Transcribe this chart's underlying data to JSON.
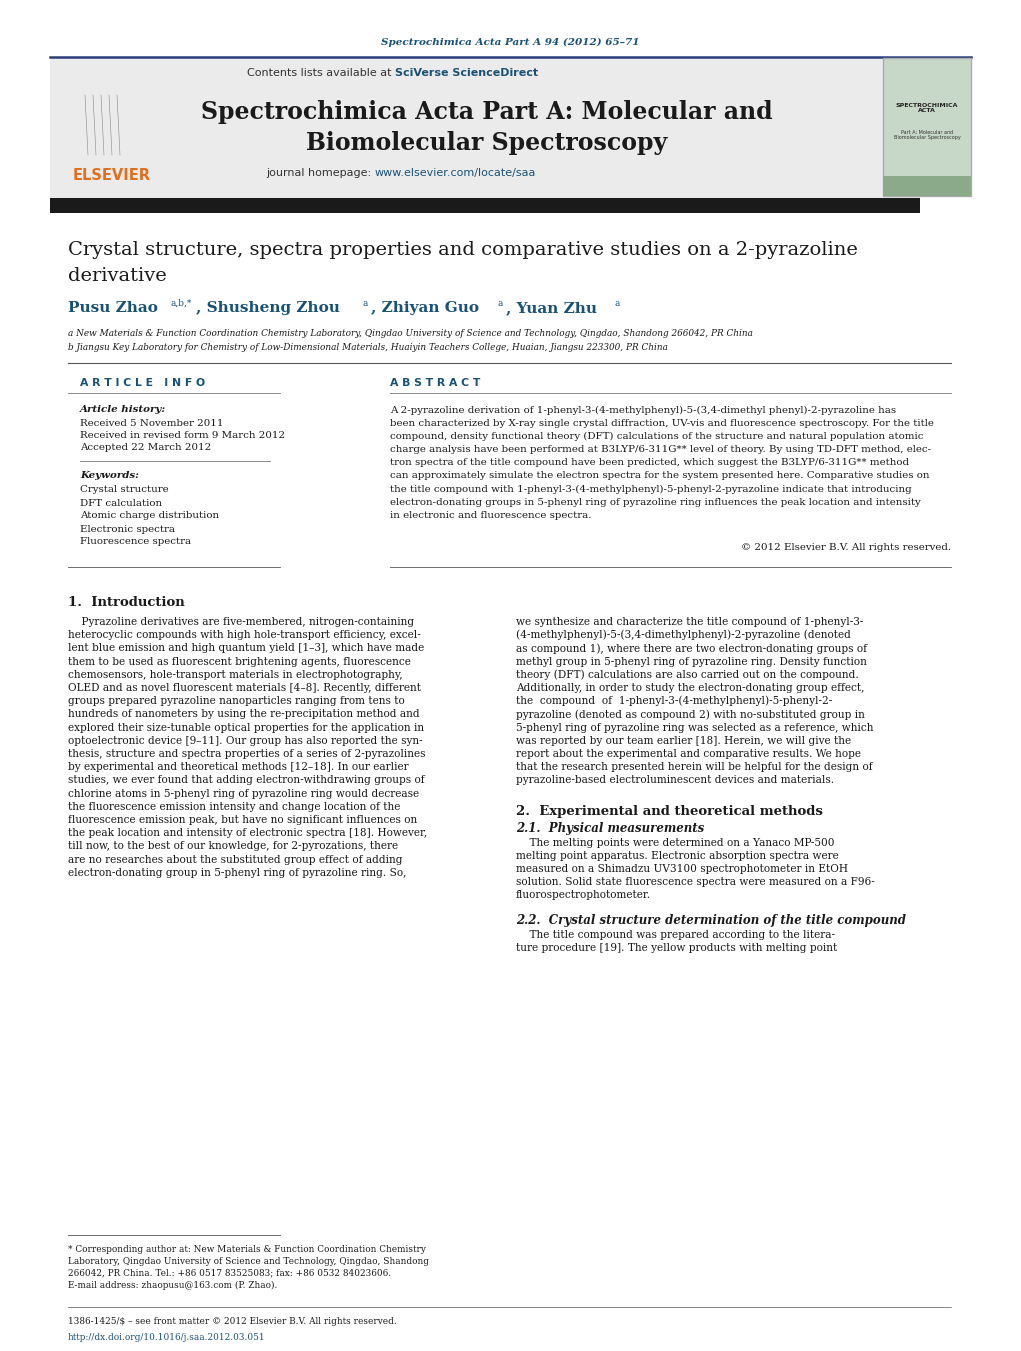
{
  "page_bg": "#ffffff",
  "top_journal_ref": "Spectrochimica Acta Part A 94 (2012) 65–71",
  "top_journal_ref_color": "#1a5276",
  "header_bg": "#ebebeb",
  "header_border_color": "#2c3e7a",
  "journal_name_line1": "Spectrochimica Acta Part A: Molecular and",
  "journal_name_line2": "Biomolecular Spectroscopy",
  "journal_homepage_plain": "journal homepage: ",
  "journal_homepage_link": "www.elsevier.com/locate/saa",
  "journal_homepage_link_color": "#1a5276",
  "journal_homepage_plain_color": "#333333",
  "dark_bar_color": "#1a1a1a",
  "title_line1": "Crystal structure, spectra properties and comparative studies on a 2-pyrazoline",
  "title_line2": "derivative",
  "author_name1": "Pusu Zhao",
  "author_sup1": "a,b,*",
  "author_name2": "Shusheng Zhou",
  "author_sup2": "a",
  "author_name3": "Zhiyan Guo",
  "author_sup3": "a",
  "author_name4": "Yuan Zhu",
  "author_sup4": "a",
  "affil_a": "a New Materials & Function Coordination Chemistry Laboratory, Qingdao University of Science and Technology, Qingdao, Shandong 266042, PR China",
  "affil_b": "b Jiangsu Key Laboratory for Chemistry of Low-Dimensional Materials, Huaiyin Teachers College, Huaian, Jiangsu 223300, PR China",
  "article_info_title": "A R T I C L E   I N F O",
  "abstract_title": "A B S T R A C T",
  "article_history_label": "Article history:",
  "received1": "Received 5 November 2011",
  "received2": "Received in revised form 9 March 2012",
  "accepted": "Accepted 22 March 2012",
  "keywords_label": "Keywords:",
  "keywords": [
    "Crystal structure",
    "DFT calculation",
    "Atomic charge distribution",
    "Electronic spectra",
    "Fluorescence spectra"
  ],
  "abstract_lines": [
    "A 2-pyrazoline derivation of 1-phenyl-3-(4-methylphenyl)-5-(3,4-dimethyl phenyl)-2-pyrazoline has",
    "been characterized by X-ray single crystal diffraction, UV-vis and fluorescence spectroscopy. For the title",
    "compound, density functional theory (DFT) calculations of the structure and natural population atomic",
    "charge analysis have been performed at B3LYP/6-311G** level of theory. By using TD-DFT method, elec-",
    "tron spectra of the title compound have been predicted, which suggest the B3LYP/6-311G** method",
    "can approximately simulate the electron spectra for the system presented here. Comparative studies on",
    "the title compound with 1-phenyl-3-(4-methylphenyl)-5-phenyl-2-pyrazoline indicate that introducing",
    "electron-donating groups in 5-phenyl ring of pyrazoline ring influences the peak location and intensity",
    "in electronic and fluorescence spectra."
  ],
  "copyright": "© 2012 Elsevier B.V. All rights reserved.",
  "section1_title": "1.  Introduction",
  "intro1_lines": [
    "    Pyrazoline derivatives are five-membered, nitrogen-containing",
    "heterocyclic compounds with high hole-transport efficiency, excel-",
    "lent blue emission and high quantum yield [1–3], which have made",
    "them to be used as fluorescent brightening agents, fluorescence",
    "chemosensors, hole-transport materials in electrophotography,",
    "OLED and as novel fluorescent materials [4–8]. Recently, different",
    "groups prepared pyrazoline nanoparticles ranging from tens to",
    "hundreds of nanometers by using the re-precipitation method and",
    "explored their size-tunable optical properties for the application in",
    "optoelectronic device [9–11]. Our group has also reported the syn-",
    "thesis, structure and spectra properties of a series of 2-pyrazolines",
    "by experimental and theoretical methods [12–18]. In our earlier",
    "studies, we ever found that adding electron-withdrawing groups of",
    "chlorine atoms in 5-phenyl ring of pyrazoline ring would decrease",
    "the fluorescence emission intensity and change location of the",
    "fluorescence emission peak, but have no significant influences on",
    "the peak location and intensity of electronic spectra [18]. However,",
    "till now, to the best of our knowledge, for 2-pyrozations, there",
    "are no researches about the substituted group effect of adding",
    "electron-donating group in 5-phenyl ring of pyrazoline ring. So,"
  ],
  "intro2_lines": [
    "we synthesize and characterize the title compound of 1-phenyl-3-",
    "(4-methylphenyl)-5-(3,4-dimethylphenyl)-2-pyrazoline (denoted",
    "as compound 1), where there are two electron-donating groups of",
    "methyl group in 5-phenyl ring of pyrazoline ring. Density function",
    "theory (DFT) calculations are also carried out on the compound.",
    "Additionally, in order to study the electron-donating group effect,",
    "the  compound  of  1-phenyl-3-(4-methylphenyl)-5-phenyl-2-",
    "pyrazoline (denoted as compound 2) with no-substituted group in",
    "5-phenyl ring of pyrazoline ring was selected as a reference, which",
    "was reported by our team earlier [18]. Herein, we will give the",
    "report about the experimental and comparative results. We hope",
    "that the research presented herein will be helpful for the design of",
    "pyrazoline-based electroluminescent devices and materials."
  ],
  "section2_title": "2.  Experimental and theoretical methods",
  "section21_title": "2.1.  Physical measurements",
  "section21_lines": [
    "    The melting points were determined on a Yanaco MP-500",
    "melting point apparatus. Electronic absorption spectra were",
    "measured on a Shimadzu UV3100 spectrophotometer in EtOH",
    "solution. Solid state fluorescence spectra were measured on a F96-",
    "fluorospectrophotometer."
  ],
  "section22_title": "2.2.  Crystal structure determination of the title compound",
  "section22_lines": [
    "    The title compound was prepared according to the litera-",
    "ture procedure [19]. The yellow products with melting point"
  ],
  "footnote_line1": "* Corresponding author at: New Materials & Function Coordination Chemistry",
  "footnote_line2": "Laboratory, Qingdao University of Science and Technology, Qingdao, Shandong",
  "footnote_line3": "266042, PR China. Tel.: +86 0517 83525083; fax: +86 0532 84023606.",
  "footnote_email": "E-mail address: zhaopusu@163.com (P. Zhao).",
  "footer_issn": "1386-1425/$ – see front matter © 2012 Elsevier B.V. All rights reserved.",
  "footer_doi": "http://dx.doi.org/10.1016/j.saa.2012.03.051",
  "footer_doi_color": "#1a5276",
  "elsevier_color": "#e07020",
  "link_color": "#1a5276",
  "text_color": "#1a1a1a",
  "author_color": "#1a5276"
}
